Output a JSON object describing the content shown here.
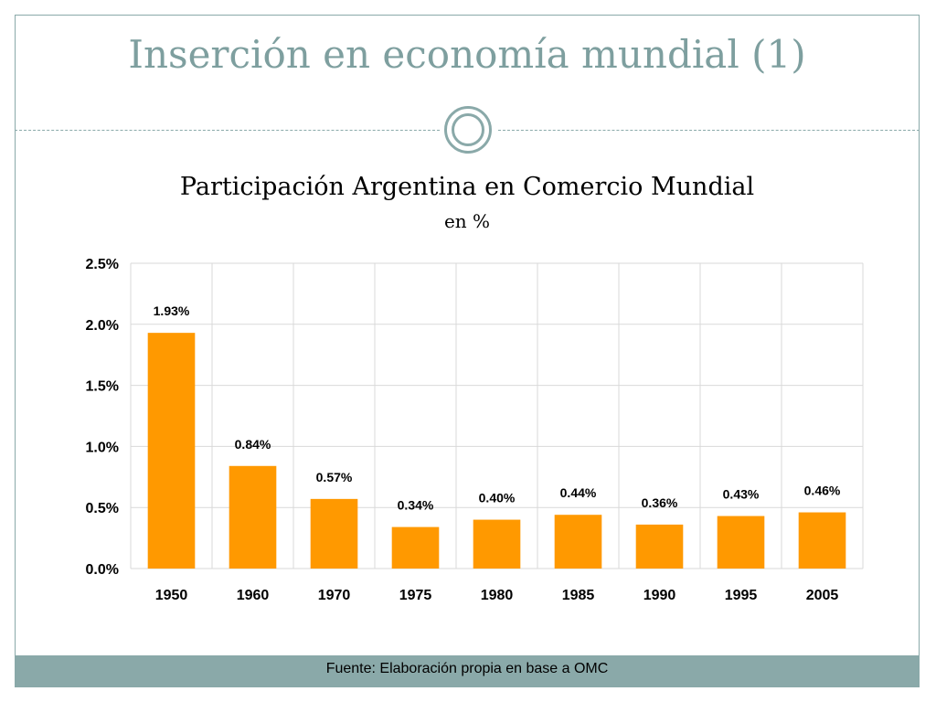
{
  "slide": {
    "title": "Inserción en economía mundial (1)",
    "footer": "Fuente: Elaboración propia en base a OMC"
  },
  "colors": {
    "bar": "#ff9900",
    "accent": "#8aa9a9",
    "grid": "#d9d9d9"
  },
  "chart_data": {
    "type": "bar",
    "title": "Participación Argentina en Comercio Mundial",
    "subtitle": "en %",
    "categories": [
      "1950",
      "1960",
      "1970",
      "1975",
      "1980",
      "1985",
      "1990",
      "1995",
      "2005"
    ],
    "values": [
      1.93,
      0.84,
      0.57,
      0.34,
      0.4,
      0.44,
      0.36,
      0.43,
      0.46
    ],
    "value_labels": [
      "1.93%",
      "0.84%",
      "0.57%",
      "0.34%",
      "0.40%",
      "0.44%",
      "0.36%",
      "0.43%",
      "0.46%"
    ],
    "ylim": [
      0,
      2.5
    ],
    "yticks": [
      0,
      0.5,
      1.0,
      1.5,
      2.0,
      2.5
    ],
    "ytick_labels": [
      "0.0%",
      "0.5%",
      "1.0%",
      "1.5%",
      "2.0%",
      "2.5%"
    ],
    "xlabel": "",
    "ylabel": "",
    "grid": true
  }
}
